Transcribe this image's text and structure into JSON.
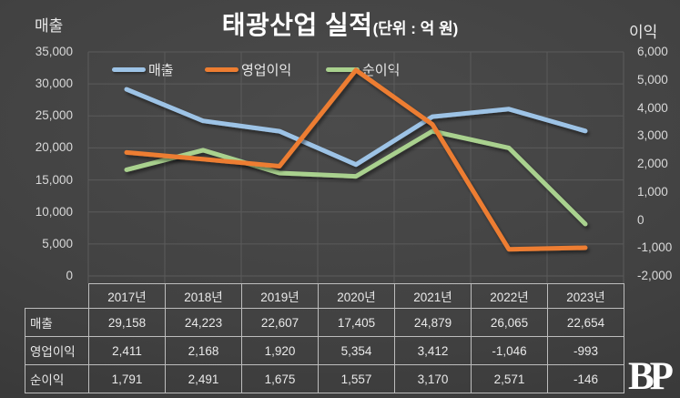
{
  "title": {
    "main": "태광산업 실적",
    "unit": "(단위 : 억 원)"
  },
  "left_axis": {
    "title": "매출",
    "ticks": [
      "35,000",
      "30,000",
      "25,000",
      "20,000",
      "15,000",
      "10,000",
      "5,000",
      "0"
    ]
  },
  "right_axis": {
    "title": "이익",
    "ticks": [
      "6,000",
      "5,000",
      "4,000",
      "3,000",
      "2,000",
      "1,000",
      "0",
      "-1,000",
      "-2,000"
    ]
  },
  "chart_data": {
    "type": "line",
    "title": "태광산업 실적 (단위 : 억 원)",
    "categories": [
      "2017년",
      "2018년",
      "2019년",
      "2020년",
      "2021년",
      "2022년",
      "2023년"
    ],
    "series": [
      {
        "name": "매출",
        "key": "revenue",
        "axis": "left",
        "color": "#9DC3E6",
        "values": [
          29158,
          24223,
          22607,
          17405,
          24879,
          26065,
          22654
        ]
      },
      {
        "name": "영업이익",
        "key": "operating-profit",
        "axis": "right",
        "color": "#ED7D31",
        "values": [
          2411,
          2168,
          1920,
          5354,
          3412,
          -1046,
          -993
        ]
      },
      {
        "name": "순이익",
        "key": "net-profit",
        "axis": "right",
        "color": "#A9D18E",
        "values": [
          1791,
          2491,
          1675,
          1557,
          3170,
          2571,
          -146
        ]
      }
    ],
    "left_ylim": [
      0,
      35000
    ],
    "right_ylim": [
      -2000,
      6000
    ],
    "grid": true,
    "legend_position": "top-inside"
  },
  "table": {
    "row_labels": [
      "매출",
      "영업이익",
      "순이익"
    ]
  },
  "logo": "BP",
  "colors": {
    "background": "#424242",
    "gridline": "#5b5b5b",
    "table_border": "#bdbdbd",
    "text": "#e8e8e8",
    "title": "#ffffff"
  }
}
